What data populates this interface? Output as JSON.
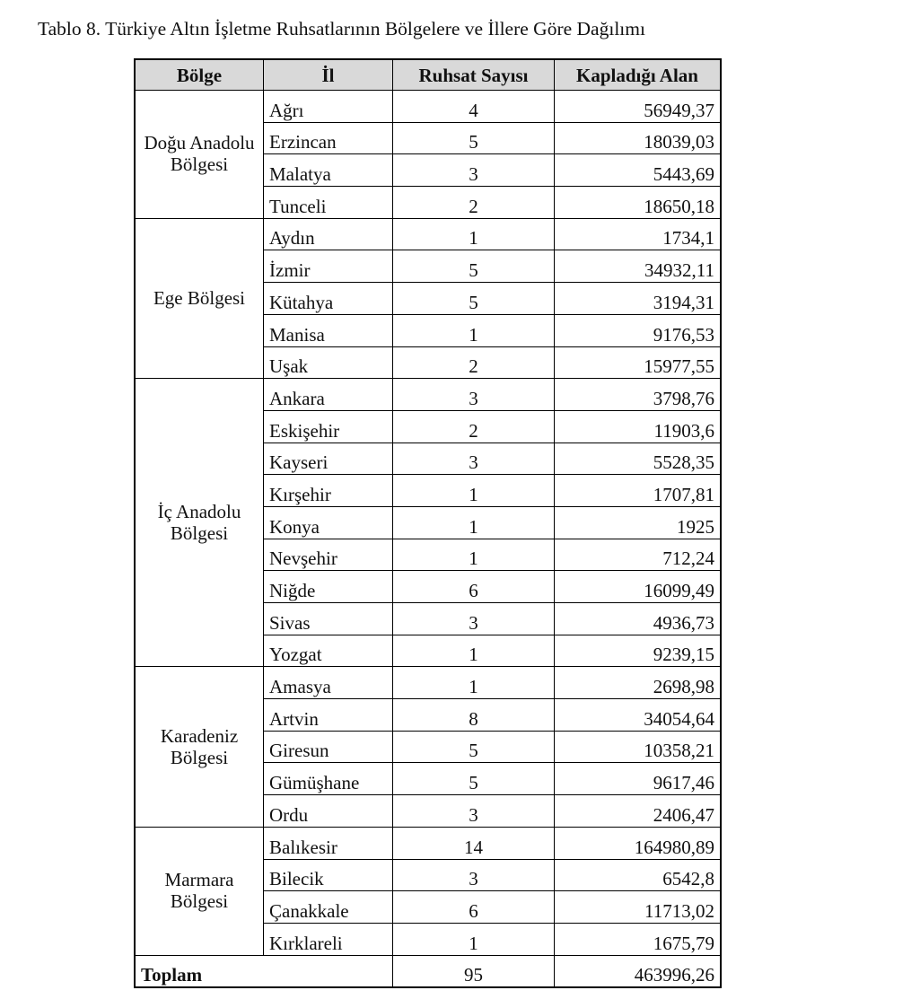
{
  "title": "Tablo 8. Türkiye Altın İşletme Ruhsatlarının Bölgelere ve İllere Göre Dağılımı",
  "header_bg": "#d9d9d9",
  "columns": [
    "Bölge",
    "İl",
    "Ruhsat Sayısı",
    "Kapladığı Alan"
  ],
  "regions": [
    {
      "name": "Doğu Anadolu Bölgesi",
      "rows": [
        {
          "il": "Ağrı",
          "ruhsat": "4",
          "alan": "56949,37"
        },
        {
          "il": "Erzincan",
          "ruhsat": "5",
          "alan": "18039,03"
        },
        {
          "il": "Malatya",
          "ruhsat": "3",
          "alan": "5443,69"
        },
        {
          "il": "Tunceli",
          "ruhsat": "2",
          "alan": "18650,18"
        }
      ]
    },
    {
      "name": "Ege Bölgesi",
      "rows": [
        {
          "il": "Aydın",
          "ruhsat": "1",
          "alan": "1734,1"
        },
        {
          "il": "İzmir",
          "ruhsat": "5",
          "alan": "34932,11"
        },
        {
          "il": "Kütahya",
          "ruhsat": "5",
          "alan": "3194,31"
        },
        {
          "il": "Manisa",
          "ruhsat": "1",
          "alan": "9176,53"
        },
        {
          "il": "Uşak",
          "ruhsat": "2",
          "alan": "15977,55"
        }
      ]
    },
    {
      "name": "İç Anadolu Bölgesi",
      "rows": [
        {
          "il": "Ankara",
          "ruhsat": "3",
          "alan": "3798,76"
        },
        {
          "il": "Eskişehir",
          "ruhsat": "2",
          "alan": "11903,6"
        },
        {
          "il": "Kayseri",
          "ruhsat": "3",
          "alan": "5528,35"
        },
        {
          "il": "Kırşehir",
          "ruhsat": "1",
          "alan": "1707,81"
        },
        {
          "il": "Konya",
          "ruhsat": "1",
          "alan": "1925"
        },
        {
          "il": "Nevşehir",
          "ruhsat": "1",
          "alan": "712,24"
        },
        {
          "il": "Niğde",
          "ruhsat": "6",
          "alan": "16099,49"
        },
        {
          "il": "Sivas",
          "ruhsat": "3",
          "alan": "4936,73"
        },
        {
          "il": "Yozgat",
          "ruhsat": "1",
          "alan": "9239,15"
        }
      ]
    },
    {
      "name": "Karadeniz Bölgesi",
      "rows": [
        {
          "il": "Amasya",
          "ruhsat": "1",
          "alan": "2698,98"
        },
        {
          "il": "Artvin",
          "ruhsat": "8",
          "alan": "34054,64"
        },
        {
          "il": "Giresun",
          "ruhsat": "5",
          "alan": "10358,21"
        },
        {
          "il": "Gümüşhane",
          "ruhsat": "5",
          "alan": "9617,46"
        },
        {
          "il": "Ordu",
          "ruhsat": "3",
          "alan": "2406,47"
        }
      ]
    },
    {
      "name": "Marmara Bölgesi",
      "rows": [
        {
          "il": "Balıkesir",
          "ruhsat": "14",
          "alan": "164980,89"
        },
        {
          "il": "Bilecik",
          "ruhsat": "3",
          "alan": "6542,8"
        },
        {
          "il": "Çanakkale",
          "ruhsat": "6",
          "alan": "11713,02"
        },
        {
          "il": "Kırklareli",
          "ruhsat": "1",
          "alan": "1675,79"
        }
      ]
    }
  ],
  "total": {
    "label": "Toplam",
    "ruhsat": "95",
    "alan": "463996,26"
  }
}
